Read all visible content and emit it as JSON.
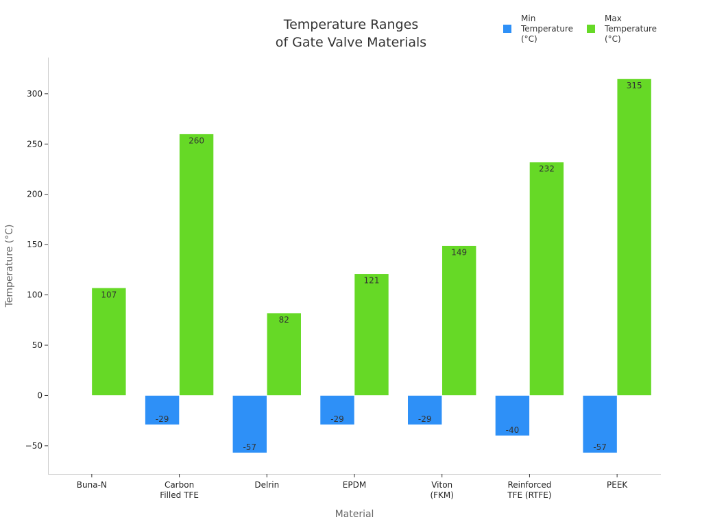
{
  "chart_data": {
    "type": "bar",
    "title_lines": [
      "Temperature Ranges",
      "of Gate Valve Materials"
    ],
    "xlabel": "Material",
    "ylabel": "Temperature (°C)",
    "categories": [
      [
        "Buna-N"
      ],
      [
        "Carbon",
        "Filled TFE"
      ],
      [
        "Delrin"
      ],
      [
        "EPDM"
      ],
      [
        "Viton",
        "(FKM)"
      ],
      [
        "Reinforced",
        "TFE (RTFE)"
      ],
      [
        "PEEK"
      ]
    ],
    "series": [
      {
        "name_lines": [
          "Min",
          "Temperature",
          "(°C)"
        ],
        "color": "#2e90f7",
        "values": [
          null,
          -29,
          -57,
          -29,
          -29,
          -40,
          -57
        ]
      },
      {
        "name_lines": [
          "Max",
          "Temperature",
          "(°C)"
        ],
        "color": "#66d926",
        "values": [
          107,
          260,
          82,
          121,
          149,
          232,
          315
        ]
      }
    ],
    "ylim": [
      -78,
      336
    ],
    "yticks": [
      -50,
      0,
      50,
      100,
      150,
      200,
      250,
      300
    ],
    "grid": false,
    "legend_position": "top-right"
  }
}
